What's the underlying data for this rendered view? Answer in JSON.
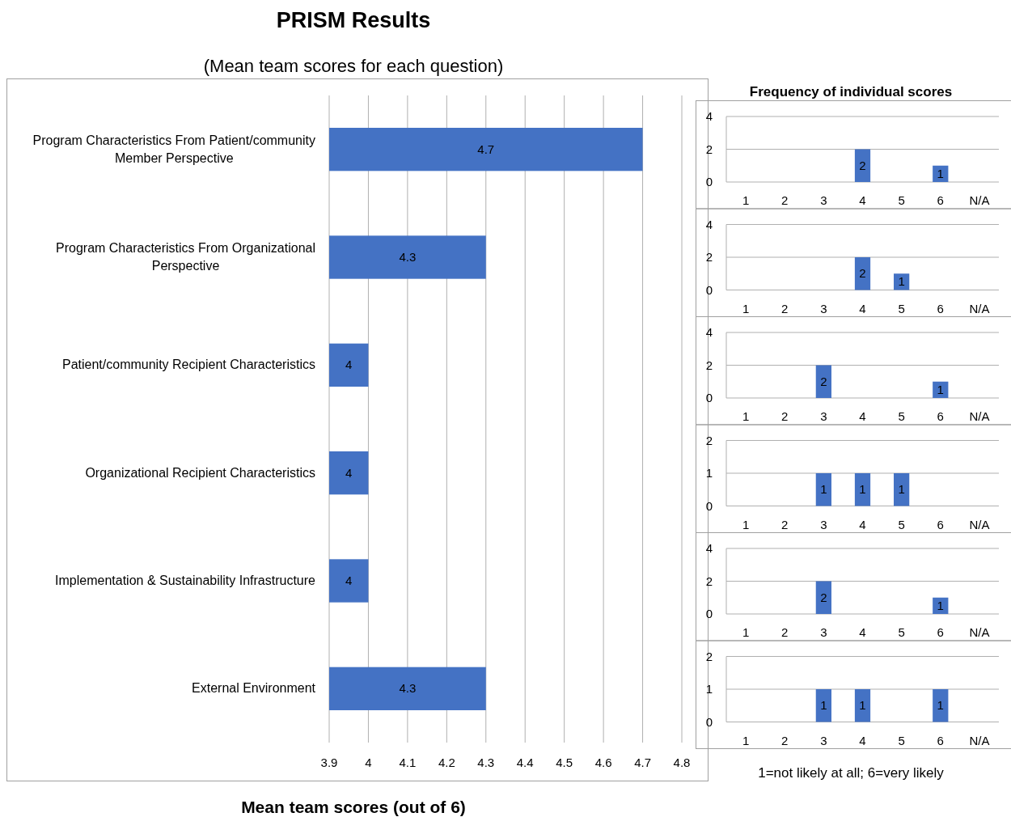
{
  "chart_data": [
    {
      "type": "bar",
      "orientation": "horizontal",
      "title": "PRISM Results",
      "subtitle": "(Mean team scores for each question)",
      "xlabel": "Mean team scores (out of 6)",
      "categories": [
        "Program Characteristics From Patient/community Member Perspective",
        "Program Characteristics From Organizational Perspective",
        "Patient/community Recipient Characteristics",
        "Organizational Recipient Characteristics",
        "Implementation & Sustainability Infrastructure",
        "External Environment"
      ],
      "values": [
        4.7,
        4.3,
        4,
        4,
        4,
        4.3
      ],
      "color": "#4472c4",
      "xlim": [
        3.9,
        4.8
      ],
      "xticks": [
        3.9,
        4,
        4.1,
        4.2,
        4.3,
        4.4,
        4.5,
        4.6,
        4.7,
        4.8
      ],
      "grid": "x",
      "data_labels": true
    },
    {
      "type": "bar",
      "title": "Frequency of individual scores",
      "categories": [
        "1",
        "2",
        "3",
        "4",
        "5",
        "6",
        "N/A"
      ],
      "values": [
        0,
        0,
        0,
        2,
        0,
        1,
        0
      ],
      "value_labels": [
        null,
        null,
        null,
        "2",
        null,
        "1",
        null
      ],
      "color": "#4472c4",
      "ylim": [
        0,
        4
      ],
      "yticks": [
        0,
        2,
        4
      ],
      "grid": "y"
    },
    {
      "type": "bar",
      "categories": [
        "1",
        "2",
        "3",
        "4",
        "5",
        "6",
        "N/A"
      ],
      "values": [
        0,
        0,
        0,
        2,
        1,
        0,
        0
      ],
      "value_labels": [
        null,
        null,
        null,
        "2",
        "1",
        null,
        null
      ],
      "color": "#4472c4",
      "ylim": [
        0,
        4
      ],
      "yticks": [
        0,
        2,
        4
      ],
      "grid": "y"
    },
    {
      "type": "bar",
      "categories": [
        "1",
        "2",
        "3",
        "4",
        "5",
        "6",
        "N/A"
      ],
      "values": [
        0,
        0,
        2,
        0,
        0,
        1,
        0
      ],
      "value_labels": [
        null,
        null,
        "2",
        null,
        null,
        "1",
        null
      ],
      "color": "#4472c4",
      "ylim": [
        0,
        4
      ],
      "yticks": [
        0,
        2,
        4
      ],
      "grid": "y"
    },
    {
      "type": "bar",
      "categories": [
        "1",
        "2",
        "3",
        "4",
        "5",
        "6",
        "N/A"
      ],
      "values": [
        0,
        0,
        1,
        1,
        1,
        0,
        0
      ],
      "value_labels": [
        null,
        null,
        "1",
        "1",
        "1",
        null,
        null
      ],
      "color": "#4472c4",
      "ylim": [
        0,
        2
      ],
      "yticks": [
        0,
        1,
        2
      ],
      "grid": "y"
    },
    {
      "type": "bar",
      "categories": [
        "1",
        "2",
        "3",
        "4",
        "5",
        "6",
        "N/A"
      ],
      "values": [
        0,
        0,
        2,
        0,
        0,
        1,
        0
      ],
      "value_labels": [
        null,
        null,
        "2",
        null,
        null,
        "1",
        null
      ],
      "color": "#4472c4",
      "ylim": [
        0,
        4
      ],
      "yticks": [
        0,
        2,
        4
      ],
      "grid": "y"
    },
    {
      "type": "bar",
      "categories": [
        "1",
        "2",
        "3",
        "4",
        "5",
        "6",
        "N/A"
      ],
      "values": [
        0,
        0,
        1,
        1,
        0,
        1,
        0
      ],
      "value_labels": [
        null,
        null,
        "1",
        "1",
        null,
        "1",
        null
      ],
      "color": "#4472c4",
      "ylim": [
        0,
        2
      ],
      "yticks": [
        0,
        1,
        2
      ],
      "grid": "y",
      "annotations": [
        "1=not likely at all; 6=very likely"
      ]
    }
  ]
}
